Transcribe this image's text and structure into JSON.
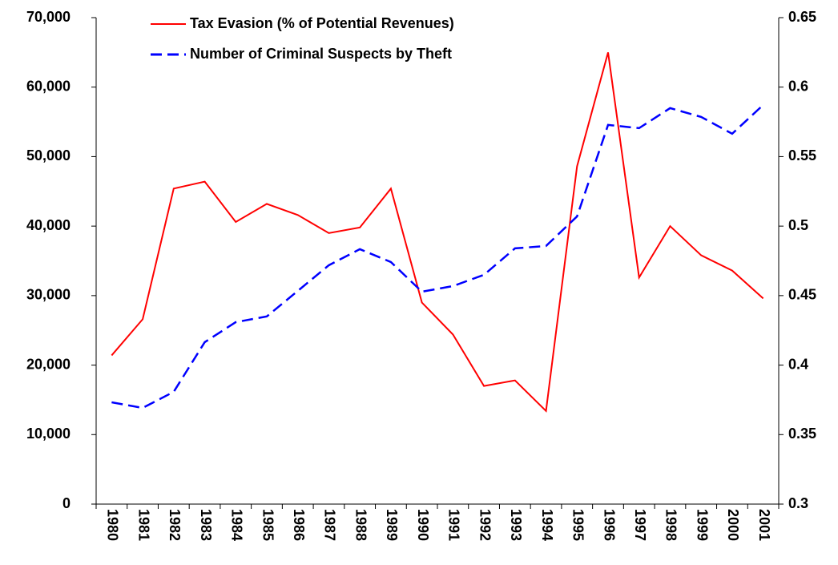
{
  "chart_data": {
    "type": "line",
    "categories": [
      "1980",
      "1981",
      "1982",
      "1983",
      "1984",
      "1985",
      "1986",
      "1987",
      "1988",
      "1989",
      "1990",
      "1991",
      "1992",
      "1993",
      "1994",
      "1995",
      "1996",
      "1997",
      "1998",
      "1999",
      "2000",
      "2001"
    ],
    "series": [
      {
        "name": "Tax Evasion (% of Potential Revenues)",
        "color": "#ff0000",
        "axis": "y2",
        "dash": false,
        "values": [
          0.407,
          0.433,
          0.527,
          0.532,
          0.503,
          0.516,
          0.508,
          0.495,
          0.499,
          0.527,
          0.445,
          0.422,
          0.385,
          0.389,
          0.367,
          0.543,
          0.625,
          0.463,
          0.5,
          0.479,
          0.468,
          0.448
        ]
      },
      {
        "name": "Number of Criminal Suspects by Theft",
        "color": "#0000ff",
        "dash": true,
        "values": [
          14650,
          13840,
          16150,
          23300,
          26180,
          27000,
          30680,
          34370,
          36680,
          34830,
          30560,
          31370,
          32990,
          36800,
          37140,
          41400,
          54560,
          54100,
          56980,
          55710,
          53290,
          57440
        ]
      }
    ],
    "ylim": [
      0,
      70000
    ],
    "yticks": [
      0,
      {
        "value": 10000,
        "label": "10,000"
      },
      {
        "value": 20000,
        "label": "20,000"
      },
      {
        "value": 30000,
        "label": "30,000"
      },
      {
        "value": 40000,
        "label": "40,000"
      },
      {
        "value": 50000,
        "label": "50,000"
      },
      {
        "value": 60000,
        "label": "60,000"
      },
      {
        "value": 70000,
        "label": "70,000"
      }
    ],
    "y2lim": [
      0.3,
      0.65
    ],
    "y2ticks": [
      0.3,
      0.35,
      0.4,
      0.45,
      0.5,
      0.55,
      0.6,
      0.65
    ],
    "legend": "top-left"
  }
}
